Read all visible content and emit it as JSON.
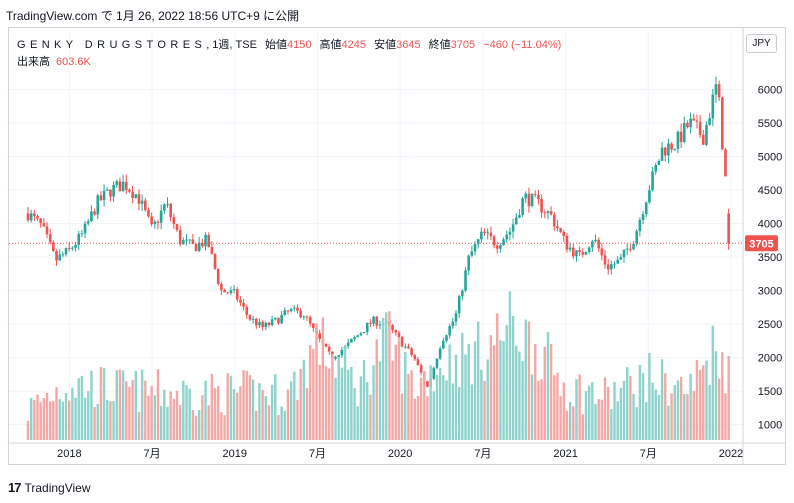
{
  "topline": "TradingView.com で 1月 26, 2022 18:56 UTC+9 に公開",
  "header": {
    "symbol": "GENKY DRUGSTORES",
    "meta": ", 1週, TSE",
    "open_label": "始値",
    "open": "4150",
    "high_label": "高値",
    "high": "4245",
    "low_label": "安値",
    "low": "3645",
    "close_label": "終値",
    "close": "3705",
    "change": "−460 (−11.04%)"
  },
  "volume": {
    "label": "出来高",
    "value": "603.6K"
  },
  "currency_button": "JPY",
  "brand": {
    "logo": "17",
    "name": "TradingView"
  },
  "colors": {
    "up": "#26a69a",
    "down": "#ef5350",
    "up_volume": "#8ed3cc",
    "down_volume": "#f4a8a6",
    "last_price": "#ef5350",
    "grid": "#f0f3fa"
  },
  "chart_data": {
    "type": "candlestick",
    "interval": "weekly",
    "x_range": [
      "2017-10",
      "2022-01"
    ],
    "y_range": [
      800,
      6350
    ],
    "y_ticks": [
      1000,
      1500,
      2000,
      2500,
      3000,
      3500,
      4000,
      4500,
      5000,
      5500,
      6000
    ],
    "x_ticks": [
      {
        "label": "2018",
        "date": "2018-01"
      },
      {
        "label": "7月",
        "date": "2018-07"
      },
      {
        "label": "2019",
        "date": "2019-01"
      },
      {
        "label": "7月",
        "date": "2019-07"
      },
      {
        "label": "2020",
        "date": "2020-01"
      },
      {
        "label": "7月",
        "date": "2020-07"
      },
      {
        "label": "2021",
        "date": "2021-01"
      },
      {
        "label": "7月",
        "date": "2021-07"
      },
      {
        "label": "2022",
        "date": "2022-01"
      }
    ],
    "last_price": 3705,
    "last_price_label": "3705",
    "grid": true,
    "price_path": [
      [
        "2017-10",
        4150
      ],
      [
        "2017-11",
        3950
      ],
      [
        "2017-12",
        3450
      ],
      [
        "2018-01",
        3600
      ],
      [
        "2018-02",
        3850
      ],
      [
        "2018-03",
        4300
      ],
      [
        "2018-04",
        4500
      ],
      [
        "2018-05",
        4600
      ],
      [
        "2018-06",
        4400
      ],
      [
        "2018-07",
        3900
      ],
      [
        "2018-08",
        4300
      ],
      [
        "2018-09",
        3750
      ],
      [
        "2018-10",
        3650
      ],
      [
        "2018-11",
        3750
      ],
      [
        "2018-12",
        3000
      ],
      [
        "2019-01",
        2950
      ],
      [
        "2019-02",
        2600
      ],
      [
        "2019-03",
        2450
      ],
      [
        "2019-04",
        2550
      ],
      [
        "2019-05",
        2700
      ],
      [
        "2019-06",
        2650
      ],
      [
        "2019-07",
        2300
      ],
      [
        "2019-08",
        2000
      ],
      [
        "2019-09",
        2150
      ],
      [
        "2019-10",
        2350
      ],
      [
        "2019-11",
        2550
      ],
      [
        "2019-12",
        2500
      ],
      [
        "2020-01",
        2250
      ],
      [
        "2020-02",
        2000
      ],
      [
        "2020-03",
        1550
      ],
      [
        "2020-04",
        2250
      ],
      [
        "2020-05",
        2600
      ],
      [
        "2020-06",
        3500
      ],
      [
        "2020-07",
        3850
      ],
      [
        "2020-08",
        3700
      ],
      [
        "2020-09",
        3900
      ],
      [
        "2020-10",
        4400
      ],
      [
        "2020-11",
        4300
      ],
      [
        "2020-12",
        4100
      ],
      [
        "2021-01",
        3700
      ],
      [
        "2021-02",
        3500
      ],
      [
        "2021-03",
        3800
      ],
      [
        "2021-04",
        3350
      ],
      [
        "2021-05",
        3450
      ],
      [
        "2021-06",
        3800
      ],
      [
        "2021-07",
        4500
      ],
      [
        "2021-08",
        5100
      ],
      [
        "2021-09",
        5200
      ],
      [
        "2021-10",
        5500
      ],
      [
        "2021-11",
        5300
      ],
      [
        "2021-12",
        6100
      ],
      [
        "2022-01",
        3705
      ]
    ],
    "volume_path": [
      [
        "2017-10",
        1250
      ],
      [
        "2017-12",
        1550
      ],
      [
        "2018-01",
        1650
      ],
      [
        "2018-04",
        1580
      ],
      [
        "2018-07",
        1530
      ],
      [
        "2018-10",
        1500
      ],
      [
        "2019-01",
        1520
      ],
      [
        "2019-05",
        1500
      ],
      [
        "2019-07",
        2300
      ],
      [
        "2019-10",
        1600
      ],
      [
        "2019-12",
        2350
      ],
      [
        "2020-02",
        1600
      ],
      [
        "2020-04",
        1950
      ],
      [
        "2020-07",
        2150
      ],
      [
        "2020-09",
        2550
      ],
      [
        "2020-11",
        2200
      ],
      [
        "2021-01",
        1600
      ],
      [
        "2021-04",
        1450
      ],
      [
        "2021-07",
        1750
      ],
      [
        "2021-10",
        1550
      ],
      [
        "2021-12",
        2300
      ],
      [
        "2022-01",
        1650
      ]
    ]
  }
}
